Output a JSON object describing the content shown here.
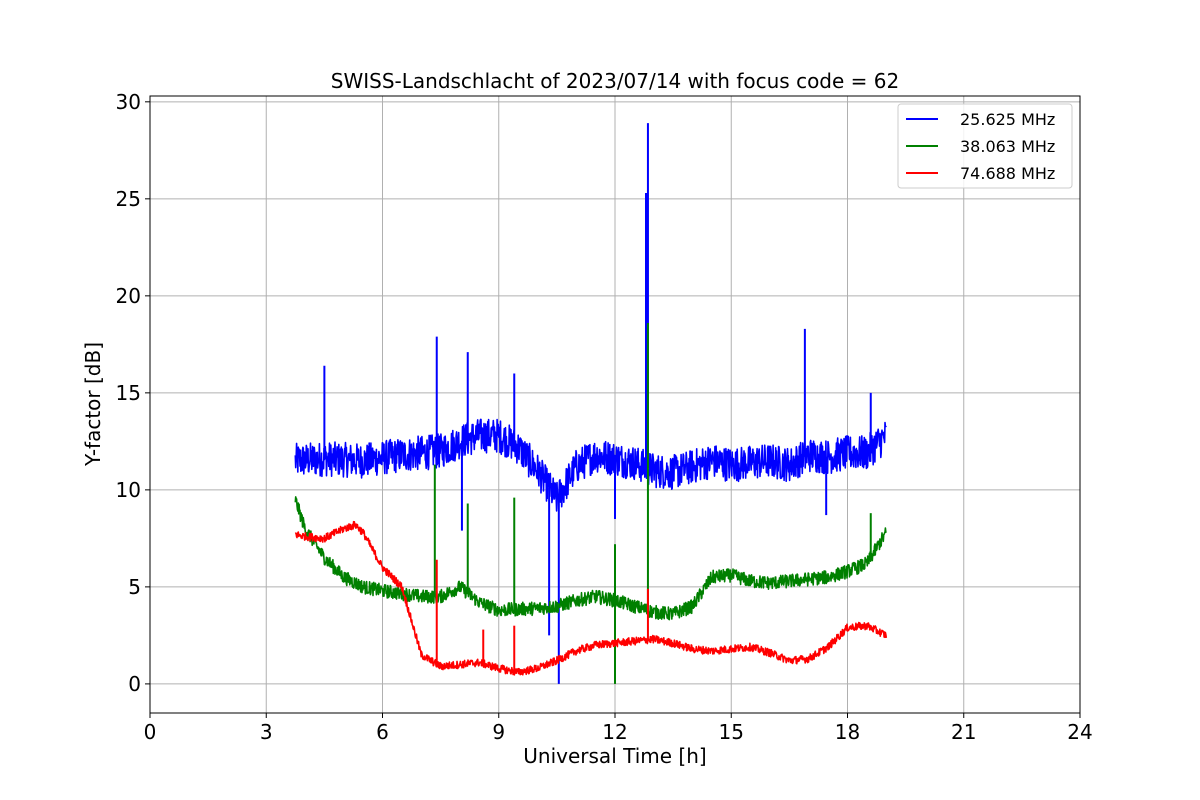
{
  "chart_data": {
    "type": "line",
    "title": "SWISS-Landschlacht of 2023/07/14 with focus code = 62",
    "xlabel": "Universal Time [h]",
    "ylabel": "Y-factor [dB]",
    "xlim": [
      0,
      24
    ],
    "ylim": [
      -1.5,
      30.3
    ],
    "xticks": [
      0,
      3,
      6,
      9,
      12,
      15,
      18,
      21,
      24
    ],
    "yticks": [
      0,
      5,
      10,
      15,
      20,
      25,
      30
    ],
    "xtick_labels": [
      "0",
      "3",
      "6",
      "9",
      "12",
      "15",
      "18",
      "21",
      "24"
    ],
    "ytick_labels": [
      "0",
      "5",
      "10",
      "15",
      "20",
      "25",
      "30"
    ],
    "grid": true,
    "legend_position": "top-right",
    "series": [
      {
        "name": "25.625 MHz",
        "color": "#0000ff",
        "noise": 0.9,
        "points": [
          [
            3.75,
            11.5
          ],
          [
            4.5,
            11.6
          ],
          [
            5.5,
            11.5
          ],
          [
            6.5,
            11.8
          ],
          [
            7.5,
            12.0
          ],
          [
            8.0,
            12.5
          ],
          [
            8.5,
            12.8
          ],
          [
            9.0,
            12.8
          ],
          [
            9.5,
            12.2
          ],
          [
            10.0,
            11.0
          ],
          [
            10.5,
            9.5
          ],
          [
            11.0,
            11.2
          ],
          [
            11.5,
            11.8
          ],
          [
            12.0,
            11.6
          ],
          [
            12.5,
            11.4
          ],
          [
            13.0,
            11.0
          ],
          [
            13.5,
            10.9
          ],
          [
            14.0,
            11.2
          ],
          [
            14.5,
            11.5
          ],
          [
            15.0,
            11.3
          ],
          [
            15.5,
            11.4
          ],
          [
            16.0,
            11.5
          ],
          [
            16.5,
            11.3
          ],
          [
            17.0,
            11.8
          ],
          [
            17.5,
            11.7
          ],
          [
            18.0,
            11.9
          ],
          [
            18.5,
            11.9
          ],
          [
            19.0,
            12.8
          ]
        ],
        "spikes": [
          [
            4.5,
            16.4
          ],
          [
            7.4,
            17.9
          ],
          [
            8.2,
            17.1
          ],
          [
            9.4,
            16.0
          ],
          [
            12.85,
            28.9
          ],
          [
            12.8,
            25.3
          ],
          [
            16.9,
            18.3
          ],
          [
            18.6,
            15.0
          ],
          [
            10.55,
            0.0
          ],
          [
            10.3,
            2.5
          ],
          [
            12.0,
            8.5
          ],
          [
            8.05,
            7.9
          ],
          [
            17.45,
            8.7
          ]
        ]
      },
      {
        "name": "38.063 MHz",
        "color": "#008000",
        "noise": 0.35,
        "points": [
          [
            3.75,
            9.5
          ],
          [
            4.0,
            8.0
          ],
          [
            4.5,
            6.5
          ],
          [
            5.0,
            5.5
          ],
          [
            5.5,
            5.0
          ],
          [
            6.0,
            4.8
          ],
          [
            7.0,
            4.5
          ],
          [
            7.5,
            4.5
          ],
          [
            8.0,
            5.0
          ],
          [
            8.5,
            4.2
          ],
          [
            9.0,
            3.8
          ],
          [
            10.0,
            3.9
          ],
          [
            10.5,
            4.0
          ],
          [
            11.0,
            4.3
          ],
          [
            11.5,
            4.5
          ],
          [
            12.0,
            4.3
          ],
          [
            12.5,
            4.0
          ],
          [
            13.0,
            3.7
          ],
          [
            13.5,
            3.6
          ],
          [
            14.0,
            4.0
          ],
          [
            14.5,
            5.5
          ],
          [
            15.0,
            5.6
          ],
          [
            15.5,
            5.3
          ],
          [
            16.0,
            5.2
          ],
          [
            16.5,
            5.3
          ],
          [
            17.0,
            5.4
          ],
          [
            17.5,
            5.5
          ],
          [
            18.0,
            5.8
          ],
          [
            18.5,
            6.2
          ],
          [
            19.0,
            7.8
          ]
        ],
        "spikes": [
          [
            7.35,
            11.3
          ],
          [
            8.2,
            9.3
          ],
          [
            9.4,
            9.6
          ],
          [
            12.85,
            18.6
          ],
          [
            12.0,
            0.0
          ],
          [
            18.6,
            8.8
          ],
          [
            12.0,
            7.2
          ]
        ]
      },
      {
        "name": "74.688 MHz",
        "color": "#ff0000",
        "noise": 0.2,
        "points": [
          [
            3.75,
            7.7
          ],
          [
            4.0,
            7.6
          ],
          [
            4.5,
            7.5
          ],
          [
            5.0,
            8.0
          ],
          [
            5.3,
            8.2
          ],
          [
            5.5,
            7.8
          ],
          [
            6.0,
            6.0
          ],
          [
            6.5,
            5.0
          ],
          [
            7.0,
            1.5
          ],
          [
            7.5,
            0.9
          ],
          [
            8.0,
            1.0
          ],
          [
            8.5,
            1.1
          ],
          [
            9.0,
            0.8
          ],
          [
            9.5,
            0.6
          ],
          [
            10.0,
            0.8
          ],
          [
            10.5,
            1.2
          ],
          [
            11.0,
            1.7
          ],
          [
            11.5,
            2.0
          ],
          [
            12.0,
            2.1
          ],
          [
            12.5,
            2.2
          ],
          [
            13.0,
            2.3
          ],
          [
            13.5,
            2.1
          ],
          [
            14.0,
            1.8
          ],
          [
            14.5,
            1.7
          ],
          [
            15.0,
            1.8
          ],
          [
            15.5,
            1.9
          ],
          [
            16.0,
            1.6
          ],
          [
            16.5,
            1.2
          ],
          [
            17.0,
            1.3
          ],
          [
            17.5,
            1.9
          ],
          [
            18.0,
            2.9
          ],
          [
            18.5,
            3.0
          ],
          [
            19.0,
            2.5
          ]
        ],
        "spikes": [
          [
            7.4,
            6.4
          ],
          [
            12.85,
            4.9
          ],
          [
            9.4,
            3.0
          ],
          [
            8.6,
            2.8
          ]
        ]
      }
    ]
  }
}
